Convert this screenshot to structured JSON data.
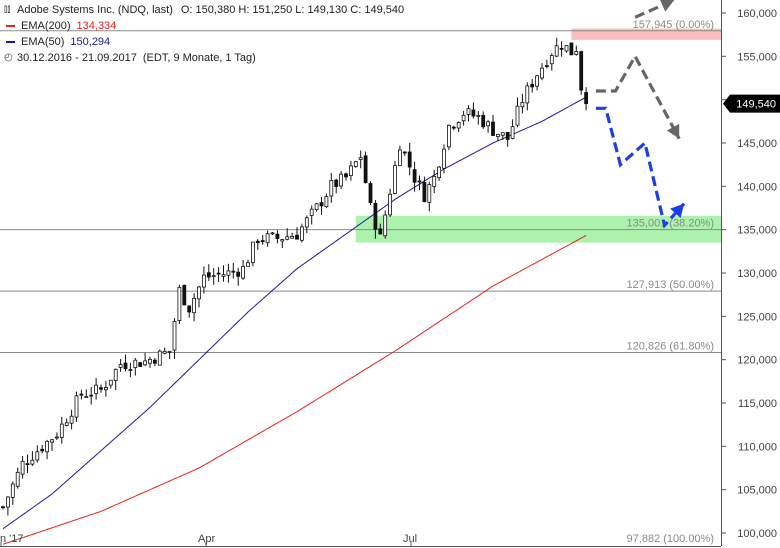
{
  "header": {
    "icon": "candlestick-icon",
    "title": "Adobe Systems Inc. (NDQ, last)",
    "ohlc": "O: 150,380  H: 151,250  L: 149,130  C: 149,540",
    "ema200_label": "EMA(200)",
    "ema200_value": "134,334",
    "ema50_label": "EMA(50)",
    "ema50_value": "150,294",
    "period": "30.12.2016 - 21.09.2017",
    "period_detail": "(EDT, 9 Monate, 1 Tag)"
  },
  "colors": {
    "ema200": "#e8201c",
    "ema50": "#1a1a9c",
    "candle": "#111111",
    "resistance_zone": "#f8b4b4",
    "support_zone": "#9ef09e",
    "arrow_gray": "#666666",
    "arrow_blue": "#1a3ee8",
    "last_price_bg": "#000000"
  },
  "chart_data": {
    "type": "candlestick",
    "ylim": [
      98500,
      161500
    ],
    "y_ticks": [
      "100,000",
      "105,000",
      "110,000",
      "115,000",
      "120,000",
      "125,000",
      "130,000",
      "135,000",
      "140,000",
      "145,000",
      "150,000",
      "155,000",
      "160,000"
    ],
    "y_tick_values": [
      100000,
      105000,
      110000,
      115000,
      120000,
      125000,
      130000,
      135000,
      140000,
      145000,
      150000,
      155000,
      160000
    ],
    "x_ticks": [
      "n '17",
      "Apr",
      "Jul"
    ],
    "last_price_label": "149,540",
    "last_price": 149540,
    "fib_levels": [
      {
        "value": 157945,
        "label": "157,945 (0.00%)"
      },
      {
        "value": 135001,
        "label": "135,001 (38.20%)"
      },
      {
        "value": 127913,
        "label": "127,913 (50.00%)"
      },
      {
        "value": 120826,
        "label": "120,826 (61.80%)"
      },
      {
        "value": 97882,
        "label": "97,882 (100.00%)"
      }
    ],
    "zones": [
      {
        "name": "resistance",
        "low": 156900,
        "high": 158200
      },
      {
        "name": "support",
        "low": 133500,
        "high": 136600
      }
    ],
    "price_anchors": [
      {
        "x": 0,
        "y": 103000
      },
      {
        "x": 4,
        "y": 108000
      },
      {
        "x": 8,
        "y": 110000
      },
      {
        "x": 11,
        "y": 111500
      },
      {
        "x": 16,
        "y": 116000
      },
      {
        "x": 20,
        "y": 116500
      },
      {
        "x": 24,
        "y": 119500
      },
      {
        "x": 29,
        "y": 119800
      },
      {
        "x": 34,
        "y": 121000
      },
      {
        "x": 36,
        "y": 128000
      },
      {
        "x": 38,
        "y": 126000
      },
      {
        "x": 41,
        "y": 129500
      },
      {
        "x": 46,
        "y": 130000
      },
      {
        "x": 49,
        "y": 130500
      },
      {
        "x": 52,
        "y": 134000
      },
      {
        "x": 56,
        "y": 134000
      },
      {
        "x": 60,
        "y": 134500
      },
      {
        "x": 64,
        "y": 137500
      },
      {
        "x": 67,
        "y": 140000
      },
      {
        "x": 70,
        "y": 141000
      },
      {
        "x": 73,
        "y": 143500
      },
      {
        "x": 75,
        "y": 137500
      },
      {
        "x": 77,
        "y": 134000
      },
      {
        "x": 79,
        "y": 139500
      },
      {
        "x": 81,
        "y": 145000
      },
      {
        "x": 84,
        "y": 141000
      },
      {
        "x": 86,
        "y": 139000
      },
      {
        "x": 88,
        "y": 141000
      },
      {
        "x": 91,
        "y": 147000
      },
      {
        "x": 94,
        "y": 148500
      },
      {
        "x": 97,
        "y": 148000
      },
      {
        "x": 100,
        "y": 146500
      },
      {
        "x": 103,
        "y": 145500
      },
      {
        "x": 106,
        "y": 150000
      },
      {
        "x": 109,
        "y": 153000
      },
      {
        "x": 112,
        "y": 155500
      },
      {
        "x": 114,
        "y": 156500
      },
      {
        "x": 116,
        "y": 155500
      },
      {
        "x": 117,
        "y": 156000
      },
      {
        "x": 118,
        "y": 151500
      },
      {
        "x": 119,
        "y": 149540
      }
    ],
    "ema50_anchors": [
      {
        "x": 0,
        "y": 100500
      },
      {
        "x": 10,
        "y": 104500
      },
      {
        "x": 20,
        "y": 109500
      },
      {
        "x": 30,
        "y": 114500
      },
      {
        "x": 40,
        "y": 120000
      },
      {
        "x": 50,
        "y": 125500
      },
      {
        "x": 60,
        "y": 130500
      },
      {
        "x": 70,
        "y": 134500
      },
      {
        "x": 80,
        "y": 138500
      },
      {
        "x": 90,
        "y": 142000
      },
      {
        "x": 100,
        "y": 145000
      },
      {
        "x": 110,
        "y": 147500
      },
      {
        "x": 119,
        "y": 150294
      }
    ],
    "ema200_anchors": [
      {
        "x": 0,
        "y": 98700
      },
      {
        "x": 20,
        "y": 102500
      },
      {
        "x": 40,
        "y": 107500
      },
      {
        "x": 60,
        "y": 114000
      },
      {
        "x": 80,
        "y": 121000
      },
      {
        "x": 100,
        "y": 128500
      },
      {
        "x": 119,
        "y": 134334
      }
    ],
    "scenario_gray": [
      {
        "x": 121,
        "y": 151000
      },
      {
        "x": 125,
        "y": 151000
      },
      {
        "x": 129,
        "y": 155000
      },
      {
        "x": 138,
        "y": 145500
      }
    ],
    "scenario_gray_up": [
      {
        "x": 129,
        "y": 159500
      },
      {
        "x": 137,
        "y": 161500
      }
    ],
    "scenario_blue": [
      {
        "x": 121,
        "y": 149000
      },
      {
        "x": 123,
        "y": 149000
      },
      {
        "x": 126,
        "y": 142500
      },
      {
        "x": 131,
        "y": 145000
      },
      {
        "x": 135,
        "y": 135500
      },
      {
        "x": 139,
        "y": 138000
      }
    ]
  }
}
